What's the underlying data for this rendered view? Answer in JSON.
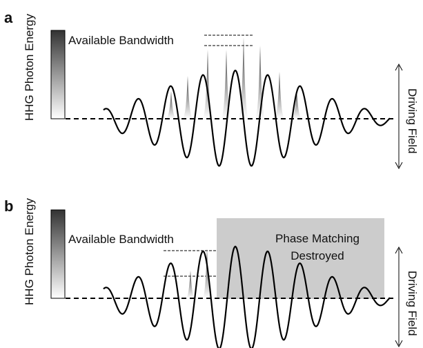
{
  "panels": [
    {
      "letter": "a",
      "y_axis_label": "HHG Photon Energy",
      "bandwidth_label": "Available Bandwidth",
      "field_label": "Driving Field",
      "region_label_line1": "",
      "region_label_line2": ""
    },
    {
      "letter": "b",
      "y_axis_label": "HHG Photon Energy",
      "bandwidth_label": "Available Bandwidth",
      "field_label": "Driving Field",
      "region_label_line1": "Phase Matching",
      "region_label_line2": "Destroyed"
    }
  ],
  "colors": {
    "line": "#000000",
    "gradient_dark": "#333333",
    "gradient_light": "#ffffff",
    "shaded_region": "#cccccc"
  }
}
